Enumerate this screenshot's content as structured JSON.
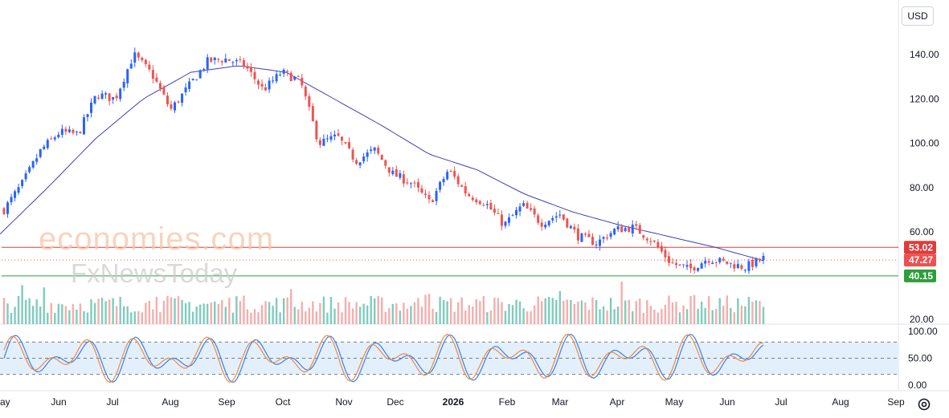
{
  "currency": "USD",
  "watermark": {
    "line1": "economies.com",
    "line2": "FxNewsToday"
  },
  "icons": {
    "settings": "gear-icon"
  },
  "colors": {
    "up": "#2962ff",
    "down": "#ef5350",
    "ma": "#3f3fb8",
    "resistance": "#e03b3b",
    "support": "#2e9e3a",
    "last": "#f05050",
    "vol_up": "#5fbfad",
    "vol_down": "#f19a98",
    "stoch_k": "#3c7ef0",
    "stoch_d": "#f08a3c",
    "stoch_band": "#e3f0fb"
  },
  "price_axis": {
    "ticks": [
      "140.00",
      "120.00",
      "100.00",
      "80.00",
      "60.00",
      "20.00"
    ]
  },
  "oscillator_axis": {
    "ticks": [
      "100.00",
      "50.00",
      "0.00"
    ]
  },
  "levels": {
    "resistance": "53.02",
    "last": "47.27",
    "support": "40.15"
  },
  "time_axis": [
    "ay",
    "Jun",
    "Jul",
    "Aug",
    "Sep",
    "Oct",
    "Nov",
    "Dec",
    "2026",
    "Feb",
    "Mar",
    "Apr",
    "May",
    "Jun",
    "Jul",
    "Aug",
    "Sep"
  ],
  "chart_data": {
    "type": "candlestick",
    "price_range": [
      20,
      150
    ],
    "levels": {
      "resistance": 53.02,
      "last": 47.27,
      "support": 40.15
    },
    "moving_average_anchors": [
      {
        "x": "early May",
        "y": 59
      },
      {
        "x": "mid Jun",
        "y": 80
      },
      {
        "x": "mid Jul",
        "y": 102
      },
      {
        "x": "mid Aug",
        "y": 120
      },
      {
        "x": "mid Sep",
        "y": 132
      },
      {
        "x": "early Oct",
        "y": 135
      },
      {
        "x": "early Nov",
        "y": 132
      },
      {
        "x": "late Nov",
        "y": 120
      },
      {
        "x": "mid Dec",
        "y": 108
      },
      {
        "x": "early Jan",
        "y": 95
      },
      {
        "x": "early Feb",
        "y": 88
      },
      {
        "x": "late Feb",
        "y": 77
      },
      {
        "x": "mid Mar",
        "y": 69
      },
      {
        "x": "early Apr",
        "y": 63
      },
      {
        "x": "late Apr",
        "y": 58
      },
      {
        "x": "mid May",
        "y": 53
      },
      {
        "x": "mid Jun",
        "y": 47
      }
    ],
    "close_path": [
      {
        "x": "early May",
        "y": 70
      },
      {
        "x": "late May",
        "y": 82
      },
      {
        "x": "mid Jun",
        "y": 97
      },
      {
        "x": "early Jul",
        "y": 105
      },
      {
        "x": "mid Jul",
        "y": 104
      },
      {
        "x": "late Jul",
        "y": 122
      },
      {
        "x": "early Aug",
        "y": 120
      },
      {
        "x": "Aug spike",
        "y": 140
      },
      {
        "x": "mid Aug",
        "y": 131
      },
      {
        "x": "late Aug",
        "y": 115
      },
      {
        "x": "early Sep",
        "y": 126
      },
      {
        "x": "mid Sep",
        "y": 137
      },
      {
        "x": "late Sep",
        "y": 138
      },
      {
        "x": "early Oct",
        "y": 135
      },
      {
        "x": "mid Oct",
        "y": 124
      },
      {
        "x": "late Oct",
        "y": 132
      },
      {
        "x": "early Nov",
        "y": 128
      },
      {
        "x": "Nov drop",
        "y": 100
      },
      {
        "x": "mid Nov",
        "y": 103
      },
      {
        "x": "late Nov",
        "y": 92
      },
      {
        "x": "early Dec",
        "y": 97
      },
      {
        "x": "mid Dec",
        "y": 86
      },
      {
        "x": "late Dec",
        "y": 82
      },
      {
        "x": "early Jan",
        "y": 73
      },
      {
        "x": "mid Jan",
        "y": 88
      },
      {
        "x": "late Jan",
        "y": 77
      },
      {
        "x": "early Feb",
        "y": 73
      },
      {
        "x": "mid Feb",
        "y": 63
      },
      {
        "x": "late Feb",
        "y": 72
      },
      {
        "x": "early Mar",
        "y": 64
      },
      {
        "x": "mid Mar",
        "y": 68
      },
      {
        "x": "late Mar",
        "y": 58
      },
      {
        "x": "early Apr",
        "y": 55
      },
      {
        "x": "mid Apr",
        "y": 61
      },
      {
        "x": "late Apr",
        "y": 62
      },
      {
        "x": "end Apr",
        "y": 56
      },
      {
        "x": "May gap",
        "y": 46
      },
      {
        "x": "early May",
        "y": 43
      },
      {
        "x": "mid May",
        "y": 48
      },
      {
        "x": "late May",
        "y": 46
      },
      {
        "x": "early Jun",
        "y": 44
      },
      {
        "x": "mid Jun",
        "y": 48
      }
    ],
    "volume_bars": 210,
    "stochastic": {
      "overbought": 80,
      "middle": 50,
      "oversold": 20,
      "range": [
        0,
        100
      ]
    }
  }
}
